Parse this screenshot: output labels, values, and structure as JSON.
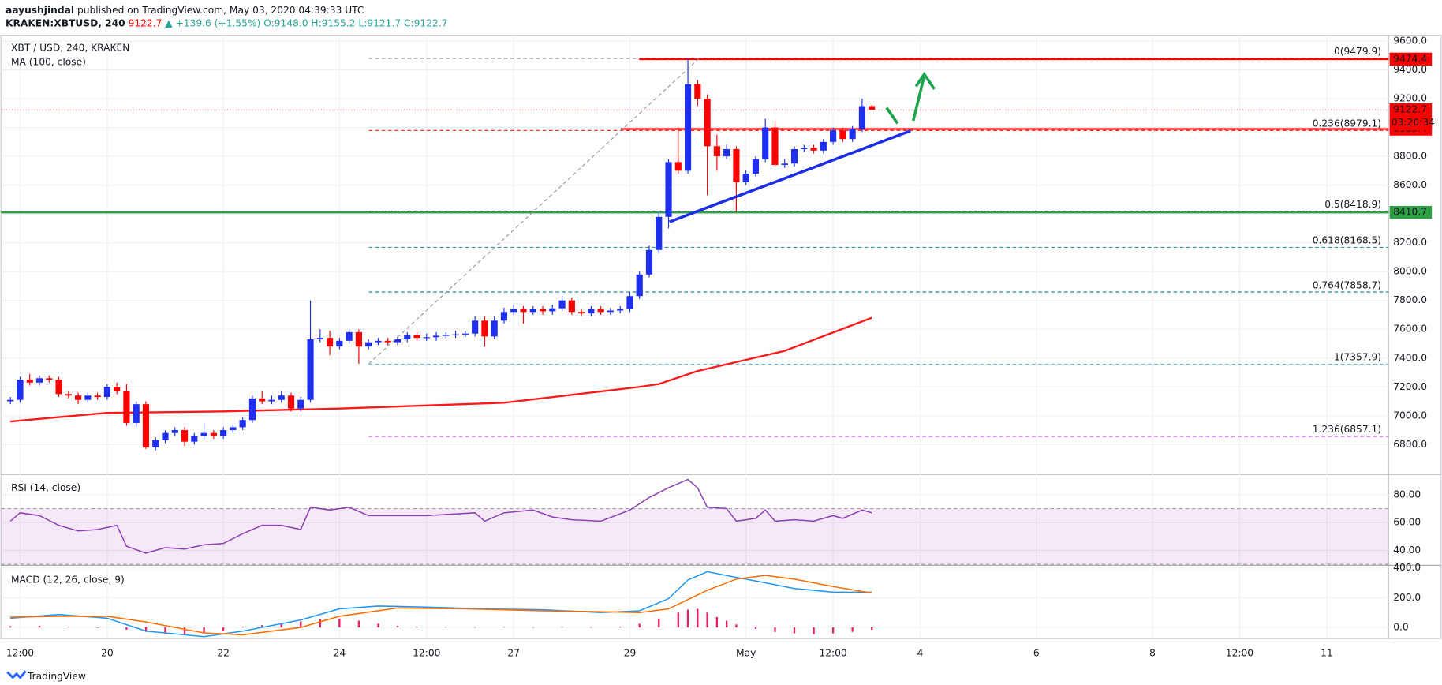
{
  "header": {
    "author": "aayushjindal",
    "published": "published on TradingView.com, May 03, 2020 04:39:33 UTC",
    "symbol": "KRAKEN:XBTUSD, 240",
    "last": "9122.7",
    "change": "▲ +139.6 (+1.55%)",
    "ohlc": "O:9148.0 H:9155.2 L:9121.7 C:9122.7"
  },
  "footer": "TradingView",
  "chart_data": [
    {
      "type": "candlestick",
      "title": "XBT / USD, 240, KRAKEN",
      "up_color": "#1f2ff0",
      "down_color": "#ff0000",
      "xlim": [
        -1.6,
        141.4
      ],
      "ylim": [
        6600,
        9640
      ],
      "grid": true,
      "x": [
        -1,
        0,
        1,
        2,
        3,
        4,
        5,
        6,
        7,
        8,
        9,
        10,
        11,
        12,
        13,
        14,
        15,
        16,
        17,
        18,
        19,
        20,
        21,
        22,
        23,
        24,
        25,
        26,
        27,
        28,
        29,
        30,
        31,
        32,
        33,
        34,
        35,
        36,
        37,
        38,
        39,
        40,
        41,
        42,
        43,
        44,
        45,
        46,
        47,
        48,
        49,
        50,
        51,
        52,
        53,
        54,
        55,
        56,
        57,
        58,
        59,
        60,
        61,
        62,
        63,
        64,
        65,
        66,
        67,
        68,
        69,
        70,
        71,
        72,
        73,
        74,
        75,
        76,
        77,
        78,
        79,
        80,
        81,
        82,
        83,
        84,
        85,
        86,
        87,
        88
      ],
      "open": [
        7100,
        7110,
        7250,
        7230,
        7260,
        7250,
        7150,
        7140,
        7110,
        7140,
        7130,
        7200,
        7170,
        6950,
        7080,
        6780,
        6830,
        6880,
        6900,
        6820,
        6860,
        6880,
        6860,
        6900,
        6920,
        6970,
        7120,
        7100,
        7110,
        7140,
        7050,
        7110,
        7530,
        7540,
        7480,
        7520,
        7580,
        7480,
        7510,
        7520,
        7510,
        7530,
        7560,
        7540,
        7545,
        7555,
        7560,
        7565,
        7570,
        7660,
        7550,
        7660,
        7720,
        7740,
        7720,
        7740,
        7725,
        7745,
        7800,
        7720,
        7710,
        7740,
        7720,
        7730,
        7740,
        7830,
        7980,
        8150,
        8380,
        8760,
        8700,
        9300,
        9200,
        8870,
        8800,
        8850,
        8620,
        8680,
        8780,
        9000,
        8740,
        8750,
        8850,
        8860,
        8840,
        8900,
        8980,
        8920,
        8990,
        9148
      ],
      "high": [
        7130,
        7270,
        7290,
        7280,
        7280,
        7270,
        7170,
        7160,
        7160,
        7160,
        7220,
        7230,
        7220,
        7100,
        7100,
        6850,
        6900,
        6920,
        6920,
        6880,
        6950,
        6900,
        6920,
        6940,
        6990,
        7140,
        7170,
        7140,
        7170,
        7160,
        7130,
        7800,
        7600,
        7590,
        7540,
        7600,
        7600,
        7530,
        7540,
        7540,
        7550,
        7580,
        7580,
        7570,
        7580,
        7580,
        7590,
        7590,
        7690,
        7690,
        7690,
        7750,
        7770,
        7760,
        7760,
        7760,
        7770,
        7830,
        7820,
        7740,
        7760,
        7760,
        7750,
        7760,
        7860,
        8000,
        8180,
        8410,
        8780,
        9000,
        9479.9,
        9330,
        9230,
        8950,
        8880,
        8870,
        8700,
        8800,
        9060,
        9050,
        8780,
        8870,
        8880,
        8880,
        8920,
        9000,
        9000,
        9010,
        9200,
        9155.2
      ],
      "low": [
        7080,
        7090,
        7210,
        7210,
        7230,
        7130,
        7120,
        7080,
        7090,
        7110,
        7110,
        7150,
        6930,
        6920,
        6770,
        6760,
        6810,
        6860,
        6790,
        6800,
        6840,
        6840,
        6840,
        6880,
        6900,
        6950,
        7080,
        7080,
        7090,
        7030,
        7030,
        7090,
        7510,
        7420,
        7460,
        7500,
        7360,
        7460,
        7490,
        7490,
        7490,
        7510,
        7520,
        7520,
        7520,
        7535,
        7540,
        7545,
        7550,
        7480,
        7530,
        7640,
        7700,
        7640,
        7700,
        7700,
        7700,
        7725,
        7700,
        7690,
        7690,
        7700,
        7700,
        7710,
        7720,
        7810,
        7960,
        8130,
        8300,
        8680,
        8680,
        9150,
        8530,
        8700,
        8780,
        8420,
        8600,
        8660,
        8760,
        8720,
        8720,
        8730,
        8830,
        8820,
        8820,
        8880,
        8900,
        8900,
        8970,
        9121.7
      ],
      "close": [
        7110,
        7250,
        7230,
        7260,
        7250,
        7150,
        7140,
        7110,
        7140,
        7130,
        7200,
        7170,
        6950,
        7080,
        6780,
        6830,
        6880,
        6900,
        6820,
        6860,
        6880,
        6860,
        6900,
        6920,
        6970,
        7120,
        7100,
        7110,
        7140,
        7050,
        7110,
        7530,
        7540,
        7480,
        7520,
        7580,
        7480,
        7510,
        7520,
        7510,
        7530,
        7560,
        7540,
        7545,
        7555,
        7560,
        7565,
        7570,
        7660,
        7550,
        7660,
        7720,
        7740,
        7720,
        7740,
        7725,
        7745,
        7800,
        7720,
        7710,
        7740,
        7720,
        7730,
        7740,
        7830,
        7980,
        8150,
        8380,
        8760,
        8700,
        9300,
        9200,
        8870,
        8800,
        8850,
        8620,
        8680,
        8780,
        9000,
        8740,
        8750,
        8850,
        8860,
        8840,
        8900,
        8980,
        8920,
        8990,
        9148,
        9122.7
      ],
      "ma": {
        "name": "MA (100, close)",
        "color": "#ff1a1a",
        "x": [
          -1,
          9,
          21,
          33,
          50,
          64,
          66,
          70,
          79,
          88
        ],
        "values": [
          6960,
          7020,
          7030,
          7050,
          7090,
          7200,
          7220,
          7310,
          7450,
          7680
        ]
      },
      "fib": [
        {
          "label": "0(9479.9)",
          "value": 9479.9,
          "color": "#787b86"
        },
        {
          "label": "0.236(8979.1)",
          "value": 8979.1,
          "color": "#e53935"
        },
        {
          "label": "0.5(8418.9)",
          "value": 8418.9,
          "color": "#787b86"
        },
        {
          "label": "0.618(8168.5)",
          "value": 8168.5,
          "color": "#26a69a"
        },
        {
          "label": "0.764(7858.7)",
          "value": 7858.7,
          "color": "#1e88a8"
        },
        {
          "label": "1(7357.9)",
          "value": 7357.9,
          "color": "#64b5f6"
        },
        {
          "label": "1.236(6857.1)",
          "value": 6857.1,
          "color": "#9c27b0"
        }
      ],
      "levels": [
        {
          "value": 9474.4,
          "color": "#ff0000"
        },
        {
          "value": 8989.4,
          "color": "#ff0000"
        },
        {
          "value": 8410.7,
          "color": "#2ea043"
        }
      ],
      "last_price": {
        "value": 9122.7,
        "color": "#ff0000"
      },
      "countdown": "03:20:34",
      "yticks": [
        {
          "value": 6800,
          "label": "6800.0"
        },
        {
          "value": 7000,
          "label": "7000.0"
        },
        {
          "value": 7200,
          "label": "7200.0"
        },
        {
          "value": 7400,
          "label": "7400.0"
        },
        {
          "value": 7600,
          "label": "7600.0"
        },
        {
          "value": 7800,
          "label": "7800.0"
        },
        {
          "value": 8000,
          "label": "8000.0"
        },
        {
          "value": 8200,
          "label": "8200.0"
        },
        {
          "value": 8400,
          "label": "8400.0"
        },
        {
          "value": 8600,
          "label": "8600.0"
        },
        {
          "value": 8800,
          "label": "8800.0"
        },
        {
          "value": 9000,
          "label": "9000.0"
        },
        {
          "value": 9200,
          "label": "9200.0"
        },
        {
          "value": 9400,
          "label": "9400.0"
        },
        {
          "value": 9600,
          "label": "9600.0"
        }
      ]
    },
    {
      "type": "line",
      "title": "RSI (14, close)",
      "color": "#8e3fb0",
      "band": [
        30,
        70
      ],
      "ylim": [
        30,
        94
      ],
      "x": [
        -1,
        0,
        2,
        4,
        6,
        8,
        10,
        11,
        13,
        15,
        17,
        19,
        21,
        23,
        25,
        27,
        29,
        30,
        32,
        34,
        36,
        42,
        47,
        48,
        50,
        53,
        55,
        57,
        60,
        63,
        65,
        67,
        69,
        70,
        71,
        73,
        74,
        76,
        77,
        78,
        80,
        82,
        84,
        85,
        87,
        88
      ],
      "values": [
        61,
        67,
        65,
        58,
        54,
        55,
        58,
        43,
        38,
        42,
        41,
        44,
        45,
        52,
        58,
        58,
        55,
        71,
        69,
        71,
        65,
        65,
        67,
        61,
        67,
        69,
        64,
        62,
        61,
        69,
        78,
        85,
        91,
        85,
        71,
        70,
        61,
        63,
        69,
        61,
        62,
        61,
        65,
        63,
        69,
        67
      ],
      "yticks": [
        {
          "value": 40,
          "label": "40.00"
        },
        {
          "value": 60,
          "label": "60.00"
        },
        {
          "value": 80,
          "label": "80.00"
        }
      ]
    },
    {
      "type": "macd",
      "title": "MACD (12, 26, close, 9)",
      "ylim": [
        -75,
        412
      ],
      "series": [
        {
          "color": "#2196f3",
          "x": [
            -1,
            4,
            9,
            13,
            19,
            23,
            29,
            33,
            37,
            42,
            48,
            54,
            60,
            64,
            67,
            69,
            71,
            74,
            77,
            80,
            84,
            88
          ],
          "values": [
            62,
            87,
            62,
            -25,
            -62,
            -25,
            50,
            125,
            144,
            137,
            125,
            119,
            100,
            112,
            194,
            319,
            375,
            337,
            300,
            262,
            237,
            237
          ]
        },
        {
          "color": "#ff6d00",
          "x": [
            -1,
            4,
            9,
            13,
            19,
            23,
            29,
            33,
            39,
            46,
            54,
            60,
            64,
            67,
            71,
            74,
            77,
            80,
            84,
            88
          ],
          "values": [
            69,
            75,
            75,
            37,
            -37,
            -50,
            0,
            75,
            131,
            125,
            112,
            106,
            100,
            125,
            250,
            325,
            350,
            325,
            275,
            231
          ]
        }
      ],
      "histogram": {
        "color": "#e91e63",
        "x": [
          -1,
          2,
          5,
          8,
          11,
          13,
          15,
          17,
          19,
          21,
          23,
          25,
          27,
          29,
          31,
          33,
          35,
          37,
          39,
          41,
          44,
          47,
          50,
          53,
          56,
          59,
          62,
          64,
          66,
          68,
          69,
          70,
          71,
          72,
          73,
          74,
          76,
          78,
          80,
          82,
          84,
          86,
          88
        ],
        "values": [
          8,
          10,
          5,
          0,
          -15,
          -30,
          -40,
          -45,
          -35,
          -25,
          5,
          15,
          25,
          40,
          55,
          60,
          45,
          25,
          10,
          5,
          3,
          2,
          3,
          2,
          3,
          2,
          5,
          25,
          60,
          100,
          120,
          125,
          100,
          70,
          45,
          20,
          -10,
          -30,
          -40,
          -45,
          -40,
          -30,
          -15
        ]
      },
      "yticks": [
        {
          "value": 0,
          "label": "0.0"
        },
        {
          "value": 200,
          "label": "200.0"
        },
        {
          "value": 400,
          "label": "400.0"
        }
      ],
      "xticks": [
        {
          "value": 0,
          "label": "12:00"
        },
        {
          "value": 9,
          "label": "20"
        },
        {
          "value": 21,
          "label": "22"
        },
        {
          "value": 33,
          "label": "24"
        },
        {
          "value": 42,
          "label": "12:00"
        },
        {
          "value": 51,
          "label": "27"
        },
        {
          "value": 63,
          "label": "29"
        },
        {
          "value": 75,
          "label": "May"
        },
        {
          "value": 84,
          "label": "12:00"
        },
        {
          "value": 93,
          "label": "4"
        },
        {
          "value": 105,
          "label": "6"
        },
        {
          "value": 117,
          "label": "8"
        },
        {
          "value": 126,
          "label": "12:00"
        },
        {
          "value": 135,
          "label": "11"
        }
      ]
    }
  ]
}
